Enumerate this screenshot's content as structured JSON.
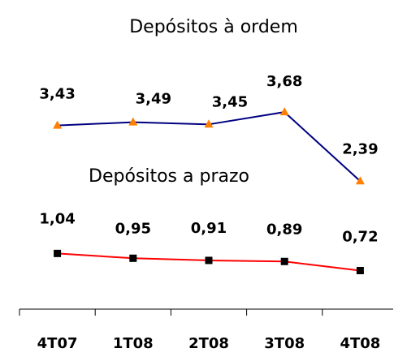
{
  "chart_data": {
    "type": "line",
    "categories": [
      "4T07",
      "1T08",
      "2T08",
      "3T08",
      "4T08"
    ],
    "series": [
      {
        "name": "Depósitos à ordem",
        "color": "#000080",
        "marker": "triangle",
        "marker_color": "#ff8000",
        "values": [
          3.43,
          3.49,
          3.45,
          3.68,
          2.39
        ],
        "value_labels": [
          "3,43",
          "3,49",
          "3,45",
          "3,68",
          "2,39"
        ]
      },
      {
        "name": "Depósitos a prazo",
        "color": "#ff0000",
        "marker": "square",
        "marker_color": "#000000",
        "values": [
          1.04,
          0.95,
          0.91,
          0.89,
          0.72
        ],
        "value_labels": [
          "1,04",
          "0,95",
          "0,91",
          "0,89",
          "0,72"
        ]
      }
    ],
    "ylim": [
      0,
      5
    ]
  }
}
